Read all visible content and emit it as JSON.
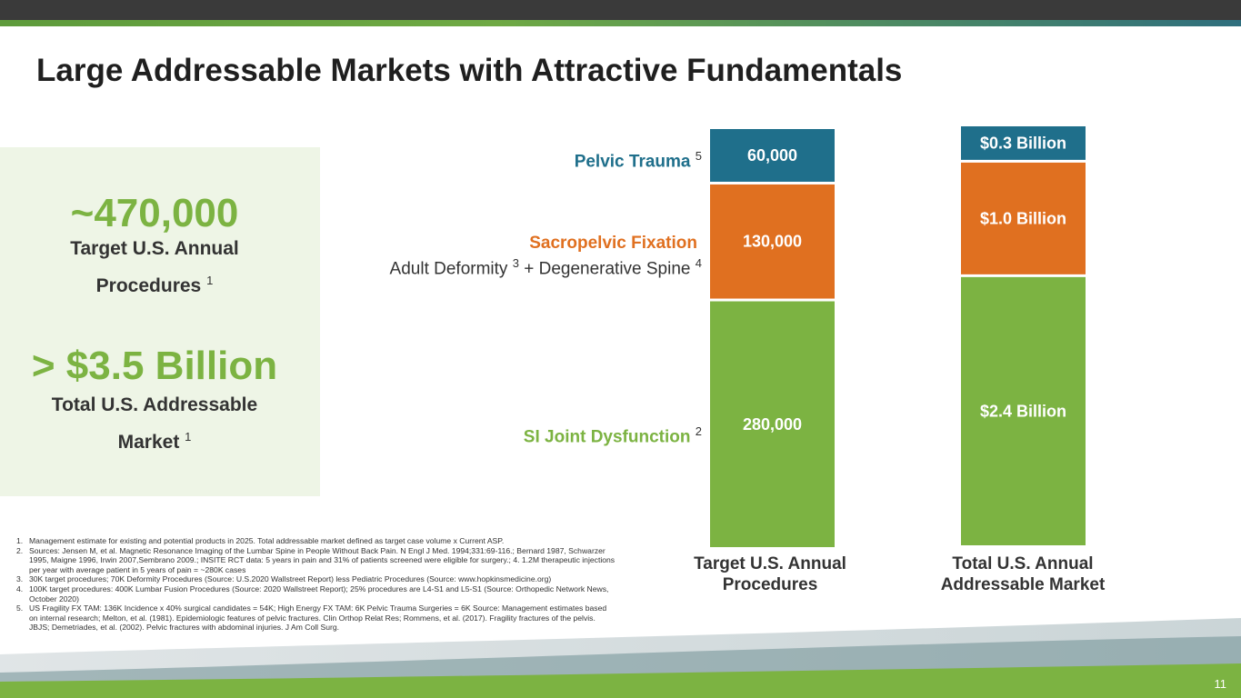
{
  "title": "Large Addressable Markets with Attractive Fundamentals",
  "summary": {
    "procedures_value": "~470,000",
    "procedures_label_line1": "Target U.S. Annual",
    "procedures_label_line2": "Procedures",
    "procedures_note": "1",
    "market_value": "> $3.5 Billion",
    "market_label_line1": "Total U.S. Addressable",
    "market_label_line2": "Market",
    "market_note": "1"
  },
  "segments": {
    "pelvic": {
      "name": "Pelvic Trauma",
      "note": "5"
    },
    "sacro": {
      "name": "Sacropelvic Fixation",
      "sub_a": "Adult Deformity",
      "note_a": "3",
      "sub_joiner": "+ Degenerative Spine",
      "note_b": "4"
    },
    "si": {
      "name": "SI Joint Dysfunction",
      "note": "2"
    }
  },
  "chart_data": {
    "type": "bar",
    "stacked": true,
    "categories": [
      "Target U.S. Annual Procedures",
      "Total U.S. Annual Addressable Market"
    ],
    "series": [
      {
        "name": "SI Joint Dysfunction",
        "color": "#7cb342",
        "values": [
          280000,
          2.4
        ],
        "labels": [
          "280,000",
          "$2.4 Billion"
        ]
      },
      {
        "name": "Sacropelvic Fixation",
        "color": "#e07020",
        "values": [
          130000,
          1.0
        ],
        "labels": [
          "130,000",
          "$1.0 Billion"
        ]
      },
      {
        "name": "Pelvic Trauma",
        "color": "#1f6f8b",
        "values": [
          60000,
          0.3
        ],
        "labels": [
          "60,000",
          "$0.3 Billion"
        ]
      }
    ]
  },
  "axis": {
    "bar1_line1": "Target U.S. Annual",
    "bar1_line2": "Procedures",
    "bar2_line1": "Total U.S. Annual",
    "bar2_line2": "Addressable Market"
  },
  "footnotes": [
    {
      "num": "1.",
      "text": "Management estimate for existing and potential products in 2025. Total addressable market defined as target case volume x Current ASP."
    },
    {
      "num": "2.",
      "text": "Sources: Jensen M, et al. Magnetic Resonance Imaging of the Lumbar Spine in People Without Back Pain. N Engl J Med. 1994;331:69-116.; Bernard 1987, Schwarzer 1995, Maigne 1996, Irwin 2007,Sembrano 2009.; INSITE RCT data: 5 years in pain and 31% of patients screened were eligible for surgery.; 4. 1.2M therapeutic injections per year with average patient in 5 years of pain = ~280K cases"
    },
    {
      "num": "3.",
      "text": "30K target procedures; 70K Deformity Procedures (Source: U.S.2020 Wallstreet Report) less Pediatric Procedures (Source: www.hopkinsmedicine.org)"
    },
    {
      "num": "4.",
      "text": "100K target procedures: 400K Lumbar Fusion Procedures (Source: 2020 Wallstreet Report); 25% procedures are L4-S1 and L5-S1 (Source: Orthopedic Network News, October 2020)"
    },
    {
      "num": "5.",
      "text": "US Fragility FX TAM: 136K Incidence x 40% surgical candidates = 54K; High Energy FX TAM: 6K Pelvic Trauma Surgeries = 6K Source: Management estimates based on internal research; Melton, et al. (1981). Epidemiologic features of pelvic fractures. Clin Orthop Relat Res; Rommens, et al. (2017). Fragility fractures of the pelvis. JBJS; Demetriades, et al. (2002). Pelvic fractures with abdominal injuries. J Am Coll Surg."
    }
  ],
  "page_number": "11"
}
